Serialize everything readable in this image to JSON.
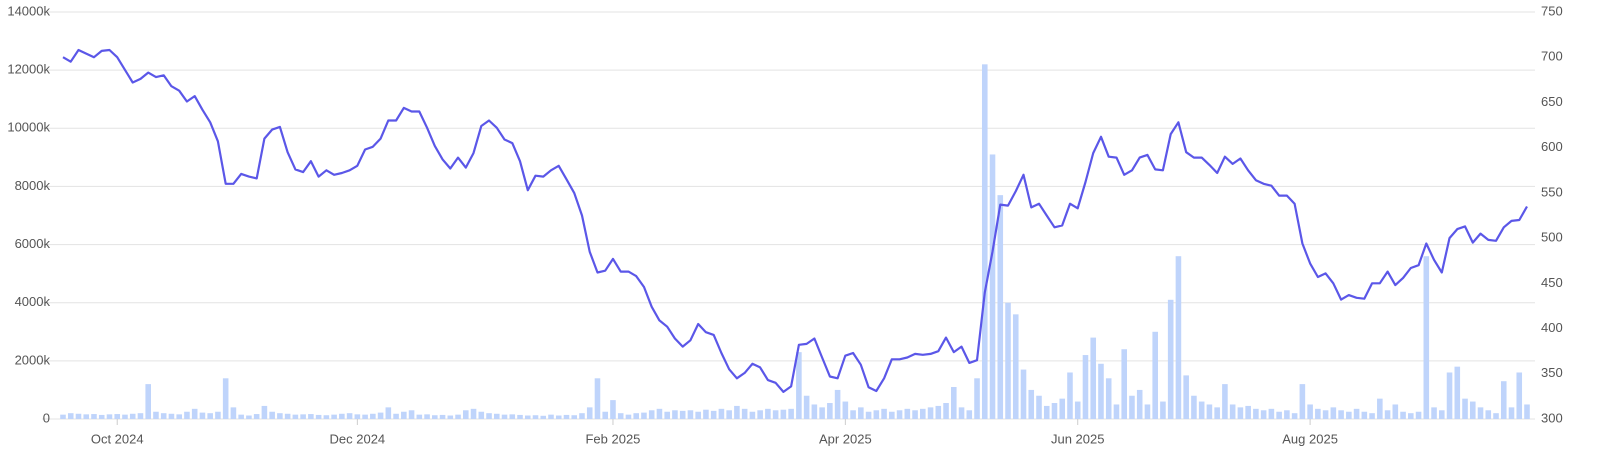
{
  "chart_data": {
    "type": "combo",
    "categories": [
      null,
      null,
      null,
      null,
      null,
      null,
      null,
      "Oct 2024",
      null,
      null,
      null,
      null,
      null,
      null,
      null,
      null,
      null,
      null,
      null,
      null,
      null,
      null,
      null,
      null,
      null,
      null,
      null,
      null,
      null,
      null,
      null,
      null,
      null,
      null,
      null,
      null,
      null,
      null,
      "Dec 2024",
      null,
      null,
      null,
      null,
      null,
      null,
      null,
      null,
      null,
      null,
      null,
      null,
      null,
      null,
      null,
      null,
      null,
      null,
      null,
      null,
      null,
      null,
      null,
      null,
      null,
      null,
      null,
      null,
      null,
      null,
      null,
      null,
      "Feb 2025",
      null,
      null,
      null,
      null,
      null,
      null,
      null,
      null,
      null,
      null,
      null,
      null,
      null,
      null,
      null,
      null,
      null,
      null,
      null,
      null,
      null,
      null,
      null,
      null,
      null,
      null,
      null,
      null,
      null,
      "Apr 2025",
      null,
      null,
      null,
      null,
      null,
      null,
      null,
      null,
      null,
      null,
      null,
      null,
      null,
      null,
      null,
      null,
      null,
      null,
      null,
      null,
      null,
      null,
      null,
      null,
      null,
      null,
      null,
      null,
      null,
      "Jun 2025",
      null,
      null,
      null,
      null,
      null,
      null,
      null,
      null,
      null,
      null,
      null,
      null,
      null,
      null,
      null,
      null,
      null,
      null,
      null,
      null,
      null,
      null,
      null,
      null,
      null,
      null,
      null,
      null,
      null,
      "Aug 2025",
      null,
      null,
      null,
      null,
      null,
      null,
      null,
      null,
      null,
      null,
      null,
      null,
      null,
      null,
      null,
      null,
      null,
      null,
      null,
      null,
      null,
      null,
      null,
      null,
      null,
      null,
      null,
      null
    ],
    "series": [
      {
        "type": "bar",
        "axis": "y",
        "color": "#bfd4fb",
        "values": [
          150,
          200,
          180,
          160,
          170,
          140,
          160,
          170,
          150,
          180,
          200,
          1200,
          250,
          200,
          180,
          160,
          250,
          350,
          220,
          200,
          250,
          1400,
          400,
          150,
          120,
          170,
          450,
          250,
          200,
          180,
          150,
          160,
          170,
          140,
          130,
          150,
          180,
          200,
          160,
          150,
          180,
          220,
          400,
          180,
          250,
          300,
          150,
          160,
          130,
          140,
          120,
          150,
          300,
          350,
          250,
          200,
          180,
          150,
          160,
          140,
          120,
          130,
          110,
          150,
          120,
          140,
          130,
          200,
          400,
          1400,
          250,
          650,
          200,
          150,
          200,
          220,
          300,
          350,
          250,
          300,
          280,
          300,
          250,
          320,
          280,
          350,
          300,
          450,
          350,
          250,
          300,
          350,
          300,
          320,
          350,
          2300,
          800,
          500,
          400,
          550,
          1000,
          600,
          300,
          400,
          250,
          300,
          350,
          250,
          300,
          350,
          300,
          350,
          400,
          450,
          550,
          1100,
          400,
          300,
          1400,
          12200,
          9100,
          7700,
          4000,
          3600,
          1700,
          1000,
          800,
          450,
          550,
          700,
          1600,
          600,
          2200,
          2800,
          1900,
          1400,
          500,
          2400,
          800,
          1000,
          500,
          3000,
          600,
          4100,
          5600,
          1500,
          800,
          600,
          500,
          400,
          1200,
          500,
          400,
          450,
          350,
          300,
          350,
          250,
          300,
          200,
          1200,
          500,
          350,
          300,
          400,
          300,
          250,
          350,
          250,
          200,
          700,
          300,
          500,
          250,
          200,
          250,
          5600,
          400,
          300,
          1600,
          1800,
          700,
          600,
          400,
          300,
          200,
          1300,
          400,
          1600,
          500
        ]
      },
      {
        "type": "line",
        "axis": "y2",
        "color": "#5b57e8",
        "values": [
          700,
          695,
          708,
          704,
          700,
          707,
          708,
          700,
          686,
          672,
          676,
          683,
          678,
          680,
          668,
          663,
          651,
          657,
          642,
          628,
          607,
          560,
          560,
          571,
          568,
          566,
          610,
          620,
          623,
          595,
          576,
          573,
          585,
          568,
          575,
          570,
          572,
          575,
          580,
          598,
          601,
          610,
          630,
          630,
          644,
          640,
          640,
          622,
          602,
          587,
          577,
          589,
          578,
          594,
          624,
          630,
          622,
          609,
          605,
          585,
          553,
          569,
          568,
          575,
          580,
          565,
          550,
          525,
          485,
          462,
          464,
          477,
          463,
          463,
          458,
          446,
          424,
          409,
          402,
          389,
          380,
          387,
          405,
          396,
          393,
          373,
          355,
          345,
          351,
          361,
          357,
          343,
          340,
          330,
          336,
          382,
          383,
          389,
          368,
          347,
          345,
          370,
          373,
          360,
          335,
          331,
          345,
          366,
          366,
          368,
          372,
          371,
          372,
          375,
          390,
          374,
          380,
          362,
          365,
          440,
          485,
          537,
          536,
          552,
          570,
          534,
          538,
          525,
          512,
          514,
          538,
          533,
          562,
          594,
          612,
          590,
          589,
          570,
          575,
          589,
          592,
          576,
          575,
          615,
          628,
          595,
          589,
          589,
          581,
          572,
          590,
          582,
          588,
          575,
          564,
          560,
          558,
          547,
          547,
          538,
          494,
          472,
          457,
          461,
          450,
          432,
          437,
          434,
          433,
          450,
          450,
          463,
          448,
          456,
          467,
          470,
          494,
          476,
          462,
          500,
          510,
          513,
          495,
          505,
          498,
          497,
          512,
          519,
          520,
          535
        ]
      }
    ],
    "ylim": [
      0,
      14000
    ],
    "yticks": [
      0,
      {
        "value": 2000,
        "label": "2000k"
      },
      {
        "value": 4000,
        "label": "4000k"
      },
      {
        "value": 6000,
        "label": "6000k"
      },
      {
        "value": 8000,
        "label": "8000k"
      },
      {
        "value": 10000,
        "label": "10000k"
      },
      {
        "value": 12000,
        "label": "12000k"
      },
      {
        "value": 14000,
        "label": "14000k"
      }
    ],
    "y2lim": [
      300,
      750
    ],
    "y2ticks": [
      300,
      350,
      400,
      450,
      500,
      550,
      600,
      650,
      700,
      750
    ],
    "grid": true
  }
}
